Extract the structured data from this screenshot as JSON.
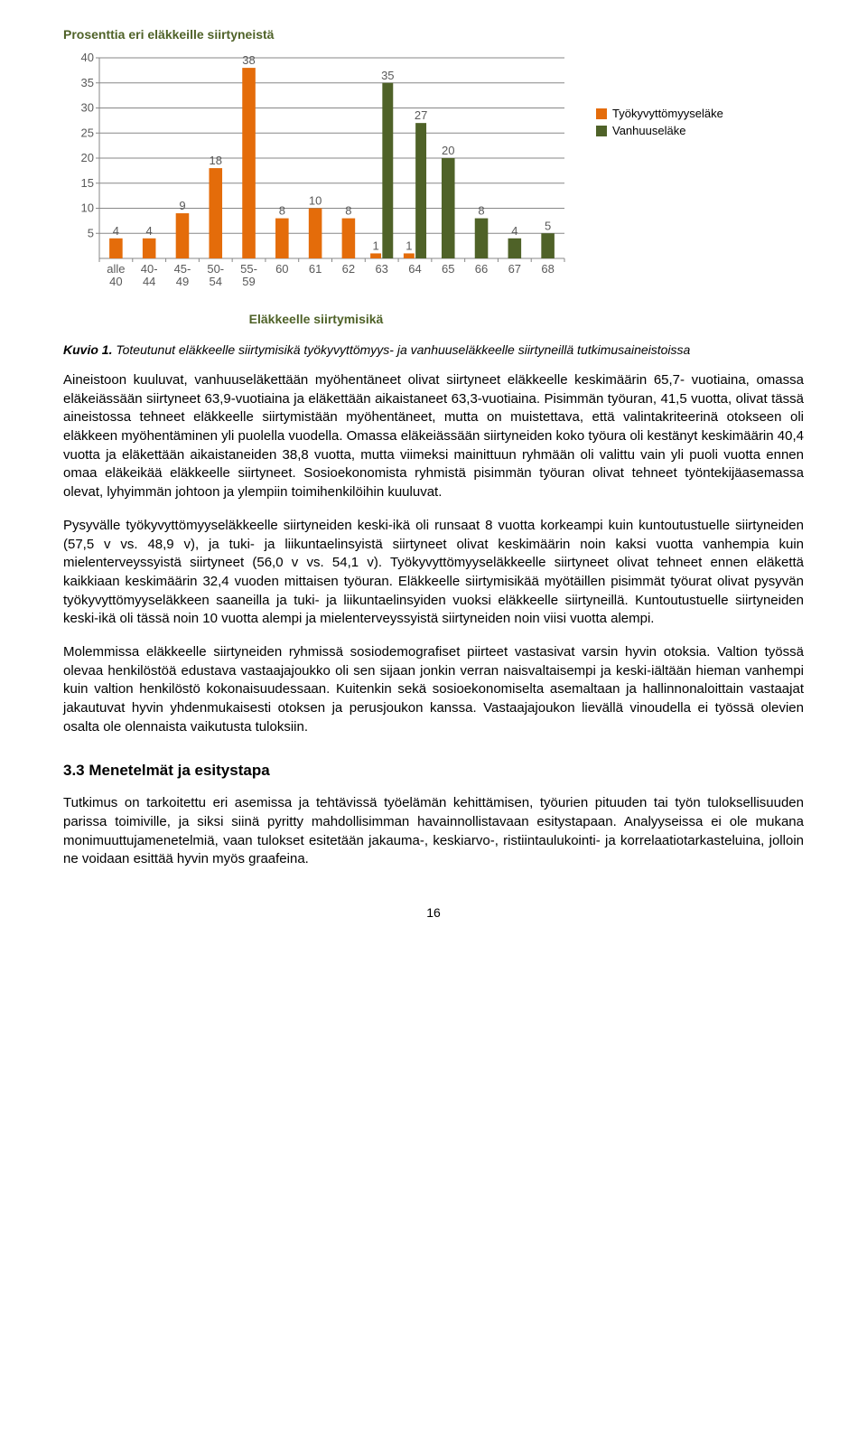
{
  "chart": {
    "type": "bar",
    "title": "Prosenttia eri eläkkeille siirtyneistä",
    "x_axis_title": "Eläkkeelle siirtymisikä",
    "categories": [
      "alle 40",
      "40-44",
      "45-49",
      "50-54",
      "55-59",
      "60",
      "61",
      "62",
      "63",
      "64",
      "65",
      "66",
      "67",
      "68"
    ],
    "series": [
      {
        "name": "Työkyvyttömyyseläke",
        "color": "#e46c0a",
        "values": [
          4,
          4,
          9,
          18,
          38,
          8,
          10,
          8,
          1,
          1,
          null,
          null,
          null,
          null
        ]
      },
      {
        "name": "Vanhuuseläke",
        "color": "#4f6228",
        "values": [
          null,
          null,
          null,
          null,
          null,
          null,
          null,
          null,
          35,
          27,
          20,
          8,
          4,
          5
        ]
      }
    ],
    "y_axis": {
      "min": 0,
      "max": 40,
      "ticks": [
        5,
        10,
        15,
        20,
        25,
        30,
        35,
        40
      ]
    },
    "styling": {
      "background": "#ffffff",
      "gridline_color": "#878787",
      "axis_color": "#878787",
      "tick_font_size": 13,
      "tick_color": "#595959",
      "title_color": "#4f6228",
      "title_font_size": 14,
      "bar_label_font_size": 13,
      "bar_label_color": "#595959",
      "bar_group_width": 0.72
    }
  },
  "caption": {
    "bold": "Kuvio 1.",
    "rest": " Toteutunut eläkkeelle siirtymisikä työkyvyttömyys- ja vanhuuseläkkeelle siirtyneillä tutkimusaineistoissa"
  },
  "paragraphs": [
    "Aineistoon kuuluvat, vanhuuseläkettään myöhentäneet olivat siirtyneet eläkkeelle keskimäärin 65,7- vuotiaina, omassa eläkeiässään siirtyneet 63,9-vuotiaina ja eläkettään aikaistaneet 63,3-vuotiaina. Pisimmän työuran, 41,5 vuotta, olivat tässä aineistossa tehneet eläkkeelle siirtymistään myöhentäneet, mutta on muistettava, että valintakriteerinä otokseen oli eläkkeen myöhentäminen yli puolella vuodella. Omassa eläkeiässään siirtyneiden koko työura oli kestänyt keskimäärin 40,4 vuotta ja eläkettään aikaistaneiden 38,8 vuotta, mutta viimeksi mainittuun ryhmään oli valittu vain yli puoli vuotta ennen omaa eläkeikää eläkkeelle siirtyneet. Sosioekonomista ryhmistä pisimmän työuran olivat tehneet työntekijäasemassa olevat, lyhyimmän johtoon ja ylempiin toimihenkilöihin kuuluvat.",
    "Pysyvälle työkyvyttömyyseläkkeelle siirtyneiden keski-ikä oli runsaat 8 vuotta korkeampi kuin kuntoutustuelle siirtyneiden (57,5 v vs. 48,9 v), ja tuki- ja liikuntaelinsyistä siirtyneet olivat keskimäärin noin kaksi vuotta vanhempia kuin mielenterveyssyistä siirtyneet (56,0 v vs. 54,1 v). Työkyvyttömyyseläkkeelle siirtyneet olivat tehneet ennen eläkettä kaikkiaan keskimäärin 32,4 vuoden mittaisen työuran. Eläkkeelle siirtymisikää myötäillen pisimmät työurat olivat pysyvän työkyvyttömyyseläkkeen saaneilla ja tuki- ja liikuntaelinsyiden vuoksi eläkkeelle siirtyneillä. Kuntoutustuelle siirtyneiden keski-ikä oli tässä noin 10 vuotta alempi ja mielenterveyssyistä siirtyneiden noin viisi vuotta alempi.",
    "Molemmissa eläkkeelle siirtyneiden ryhmissä sosiodemografiset piirteet vastasivat varsin hyvin otoksia. Valtion työssä olevaa henkilöstöä edustava vastaajajoukko oli sen sijaan jonkin verran naisvaltaisempi ja keski-iältään hieman vanhempi kuin valtion henkilöstö kokonaisuudessaan. Kuitenkin sekä sosioekonomiselta asemaltaan ja hallinnonaloittain vastaajat jakautuvat hyvin yhdenmukaisesti otoksen ja perusjoukon kanssa. Vastaajajoukon lievällä vinoudella ei työssä olevien osalta ole olennaista vaikutusta tuloksiin."
  ],
  "subhead": "3.3 Menetelmät ja esitystapa",
  "paragraph_after_subhead": "Tutkimus on tarkoitettu eri asemissa ja tehtävissä työelämän kehittämisen, työurien pituuden tai työn tuloksellisuuden parissa toimiville, ja siksi siinä pyritty mahdollisimman havainnollistavaan esitystapaan. Analyyseissa ei ole mukana monimuuttujamenetelmiä, vaan tulokset esitetään jakauma-, keskiarvo-, ristiintaulukointi- ja korrelaatiotarkasteluina, jolloin ne voidaan esittää hyvin myös graafeina.",
  "page_number": "16"
}
